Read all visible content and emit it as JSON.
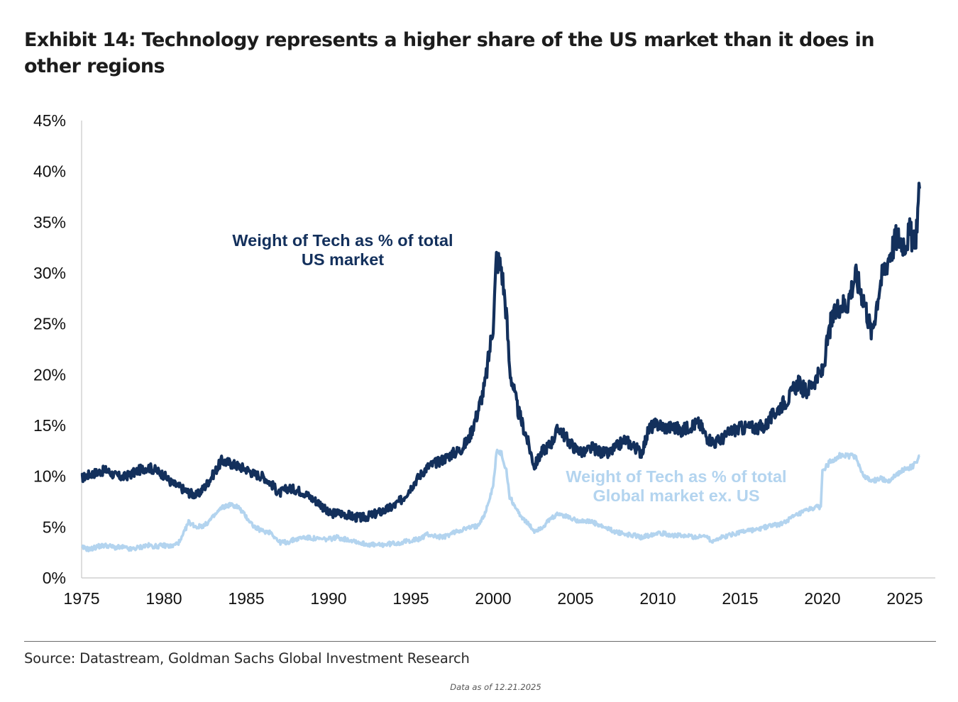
{
  "title": "Exhibit 14: Technology represents a higher share of the US market than it does in other regions",
  "source": "Source: Datastream, Goldman Sachs Global Investment Research",
  "as_of": "Data as of 12.21.2025",
  "chart_data": {
    "type": "line",
    "title": "Exhibit 14: Technology represents a higher share of the US market than it does in other regions",
    "xlabel": "",
    "ylabel": "",
    "xlim": [
      1975,
      2026
    ],
    "ylim": [
      0,
      45
    ],
    "x_ticks": [
      "1975",
      "1980",
      "1985",
      "1990",
      "1995",
      "2000",
      "2005",
      "2010",
      "2015",
      "2020",
      "2025"
    ],
    "x_tick_values": [
      1975,
      1980,
      1985,
      1990,
      1995,
      2000,
      2005,
      2010,
      2015,
      2020,
      2025
    ],
    "y_ticks": [
      "0%",
      "5%",
      "10%",
      "15%",
      "20%",
      "25%",
      "30%",
      "35%",
      "40%",
      "45%"
    ],
    "y_tick_values": [
      0,
      5,
      10,
      15,
      20,
      25,
      30,
      35,
      40,
      45
    ],
    "grid": false,
    "legend": "none (inline annotations)",
    "colors": {
      "us": "#13305c",
      "global_ex_us": "#b3d4ef"
    },
    "annotations": [
      {
        "series": "us",
        "lines": [
          "Weight of Tech as % of total",
          "US market"
        ]
      },
      {
        "series": "global_ex_us",
        "lines": [
          "Weight of Tech as % of total",
          "Global market ex. US"
        ]
      }
    ],
    "series": [
      {
        "key": "us",
        "name": "Weight of Tech as % of total US market",
        "x": [
          1975.0,
          1975.5,
          1976.0,
          1976.5,
          1977.0,
          1977.5,
          1978.0,
          1978.5,
          1979.0,
          1979.5,
          1980.0,
          1980.5,
          1981.0,
          1981.5,
          1982.0,
          1982.5,
          1983.0,
          1983.5,
          1984.0,
          1984.5,
          1985.0,
          1985.5,
          1986.0,
          1986.5,
          1987.0,
          1987.5,
          1988.0,
          1988.5,
          1989.0,
          1989.5,
          1990.0,
          1990.5,
          1991.0,
          1991.5,
          1992.0,
          1992.5,
          1993.0,
          1993.5,
          1994.0,
          1994.5,
          1995.0,
          1995.5,
          1996.0,
          1996.5,
          1997.0,
          1997.5,
          1998.0,
          1998.5,
          1999.0,
          1999.5,
          2000.0,
          2000.2,
          2000.5,
          2000.8,
          2001.0,
          2001.5,
          2002.0,
          2002.5,
          2003.0,
          2003.5,
          2004.0,
          2004.5,
          2005.0,
          2005.5,
          2006.0,
          2006.5,
          2007.0,
          2007.5,
          2008.0,
          2008.5,
          2009.0,
          2009.5,
          2010.0,
          2010.5,
          2011.0,
          2011.5,
          2012.0,
          2012.5,
          2013.0,
          2013.5,
          2014.0,
          2014.5,
          2015.0,
          2015.5,
          2016.0,
          2016.5,
          2017.0,
          2017.5,
          2018.0,
          2018.5,
          2019.0,
          2019.5,
          2020.0,
          2020.5,
          2021.0,
          2021.5,
          2022.0,
          2022.5,
          2023.0,
          2023.5,
          2024.0,
          2024.5,
          2025.0,
          2025.3,
          2025.6,
          2025.9
        ],
        "values": [
          9.8,
          10.2,
          10.4,
          10.6,
          10.1,
          9.9,
          10.2,
          10.6,
          10.9,
          10.6,
          10.1,
          9.3,
          8.9,
          8.4,
          8.1,
          9.0,
          10.2,
          11.5,
          11.3,
          11.0,
          10.7,
          10.2,
          10.0,
          9.3,
          8.3,
          8.8,
          8.7,
          8.4,
          7.8,
          7.3,
          6.3,
          6.4,
          6.3,
          6.0,
          5.9,
          6.1,
          6.4,
          6.7,
          7.1,
          7.8,
          8.9,
          10.0,
          10.9,
          11.3,
          11.7,
          12.2,
          12.6,
          13.6,
          16.0,
          19.0,
          25.0,
          31.5,
          30.5,
          26.0,
          20.5,
          16.5,
          14.0,
          11.0,
          12.5,
          13.2,
          14.8,
          13.6,
          12.7,
          12.3,
          12.8,
          12.4,
          12.2,
          12.9,
          13.6,
          13.0,
          12.3,
          14.8,
          15.1,
          14.8,
          14.8,
          14.5,
          15.0,
          15.2,
          13.8,
          13.3,
          13.8,
          14.5,
          14.7,
          14.8,
          14.8,
          14.9,
          16.0,
          17.0,
          17.8,
          19.2,
          18.3,
          19.4,
          20.3,
          25.0,
          26.8,
          27.0,
          29.8,
          27.5,
          24.0,
          29.0,
          31.5,
          33.5,
          33.0,
          34.0,
          32.5,
          38.3
        ]
      },
      {
        "key": "global_ex_us",
        "name": "Weight of Tech as % of total Global market ex. US",
        "x": [
          1975.0,
          1975.5,
          1976.0,
          1976.5,
          1977.0,
          1977.5,
          1978.0,
          1978.5,
          1979.0,
          1979.5,
          1980.0,
          1980.5,
          1981.0,
          1981.5,
          1982.0,
          1982.5,
          1983.0,
          1983.5,
          1984.0,
          1984.5,
          1985.0,
          1985.5,
          1986.0,
          1986.5,
          1987.0,
          1987.5,
          1988.0,
          1988.5,
          1989.0,
          1989.5,
          1990.0,
          1990.5,
          1991.0,
          1991.5,
          1992.0,
          1992.5,
          1993.0,
          1993.5,
          1994.0,
          1994.5,
          1995.0,
          1995.5,
          1996.0,
          1996.5,
          1997.0,
          1997.5,
          1998.0,
          1998.5,
          1999.0,
          1999.5,
          2000.0,
          2000.2,
          2000.5,
          2000.8,
          2001.0,
          2001.5,
          2002.0,
          2002.5,
          2003.0,
          2003.5,
          2004.0,
          2004.5,
          2005.0,
          2005.5,
          2006.0,
          2006.5,
          2007.0,
          2007.5,
          2008.0,
          2008.5,
          2009.0,
          2009.5,
          2010.0,
          2010.5,
          2011.0,
          2011.5,
          2012.0,
          2012.5,
          2013.0,
          2013.2,
          2013.5,
          2014.0,
          2014.5,
          2015.0,
          2015.5,
          2016.0,
          2016.5,
          2017.0,
          2017.5,
          2018.0,
          2018.5,
          2019.0,
          2019.5,
          2019.9,
          2020.0,
          2020.5,
          2021.0,
          2021.5,
          2022.0,
          2022.5,
          2023.0,
          2023.5,
          2024.0,
          2024.5,
          2025.0,
          2025.5,
          2025.9
        ],
        "values": [
          3.0,
          2.8,
          3.1,
          3.2,
          3.0,
          3.0,
          2.8,
          3.0,
          3.2,
          3.1,
          3.2,
          3.1,
          3.6,
          5.5,
          5.0,
          5.2,
          6.0,
          6.9,
          7.2,
          7.0,
          6.0,
          5.0,
          4.6,
          4.5,
          3.5,
          3.5,
          3.8,
          4.0,
          3.9,
          3.8,
          3.8,
          4.0,
          3.8,
          3.7,
          3.4,
          3.3,
          3.2,
          3.3,
          3.4,
          3.5,
          3.7,
          3.8,
          4.3,
          4.1,
          4.0,
          4.4,
          4.7,
          4.9,
          5.1,
          6.3,
          9.0,
          12.5,
          12.2,
          10.5,
          8.0,
          6.5,
          5.5,
          4.6,
          5.0,
          5.8,
          6.3,
          6.0,
          5.7,
          5.6,
          5.5,
          5.1,
          4.8,
          4.5,
          4.3,
          4.2,
          4.0,
          4.2,
          4.5,
          4.3,
          4.2,
          4.1,
          4.1,
          4.0,
          4.2,
          3.6,
          3.8,
          4.0,
          4.3,
          4.5,
          4.7,
          4.7,
          5.0,
          5.2,
          5.3,
          5.8,
          6.2,
          6.6,
          6.9,
          7.0,
          10.5,
          11.5,
          12.0,
          12.0,
          12.0,
          10.0,
          9.5,
          9.8,
          9.5,
          10.2,
          10.7,
          11.0,
          12.0
        ]
      }
    ]
  }
}
